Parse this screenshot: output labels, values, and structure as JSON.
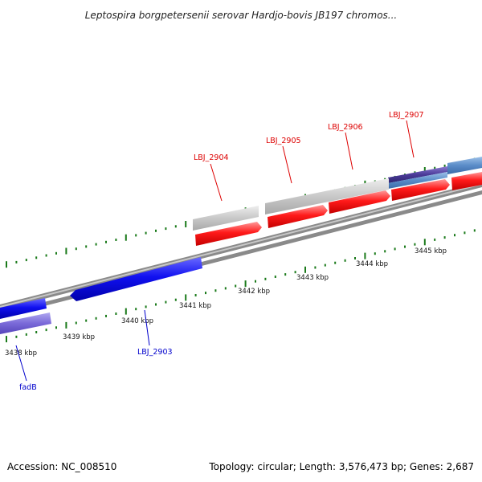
{
  "title": "Leptospira borgpetersenii serovar Hardjo-bovis JB197 chromos...",
  "scale_labels": [
    "3438 kbp",
    "3439 kbp",
    "3440 kbp",
    "3441 kbp",
    "3442 kbp",
    "3443 kbp",
    "3444 kbp",
    "3445 kbp"
  ],
  "gene_labels": [
    {
      "name": "LBJ_2904",
      "color": "#dd0000"
    },
    {
      "name": "LBJ_2905",
      "color": "#dd0000"
    },
    {
      "name": "LBJ_2906",
      "color": "#dd0000"
    },
    {
      "name": "LBJ_2907",
      "color": "#dd0000"
    },
    {
      "name": "LBJ_2903",
      "color": "#0000cc"
    },
    {
      "name": "fadB",
      "color": "#0000cc"
    }
  ],
  "footer": {
    "accession": "Accession: NC_008510",
    "summary": "Topology: circular; Length: 3,576,473 bp; Genes: 2,687"
  }
}
